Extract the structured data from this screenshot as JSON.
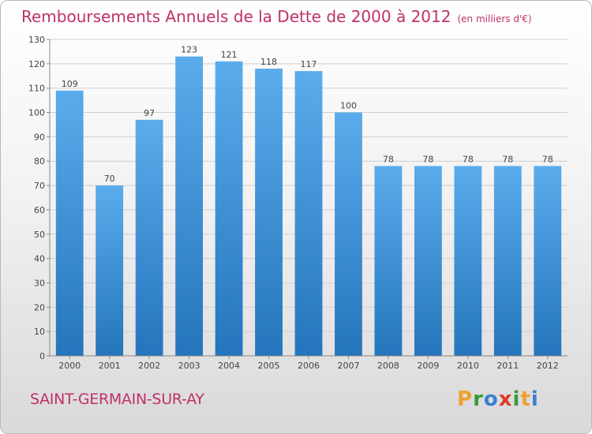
{
  "chart_data": {
    "type": "bar",
    "title": "Remboursements Annuels de la Dette de 2000 à 2012",
    "subtitle": "(en milliers d'€)",
    "categories": [
      "2000",
      "2001",
      "2002",
      "2003",
      "2004",
      "2005",
      "2006",
      "2007",
      "2008",
      "2009",
      "2010",
      "2011",
      "2012"
    ],
    "values": [
      109,
      70,
      97,
      123,
      121,
      118,
      117,
      100,
      78,
      78,
      78,
      78,
      78
    ],
    "xlabel": "",
    "ylabel": "",
    "ylim": [
      0,
      130
    ],
    "yticks": [
      0,
      10,
      20,
      30,
      40,
      50,
      60,
      70,
      80,
      90,
      100,
      110,
      120,
      130
    ],
    "grid": true,
    "bar_color": "#3a8fd6"
  },
  "footer": {
    "commune": "SAINT-GERMAIN-SUR-AY",
    "brand_letters": [
      "P",
      "r",
      "o",
      "x",
      "i",
      "t",
      "i"
    ],
    "brand_colors": [
      "#f0a030",
      "#3a9a3a",
      "#3a7fd0",
      "#e03a2a",
      "#3a9a3a",
      "#f0a030",
      "#3a7fd0"
    ]
  }
}
